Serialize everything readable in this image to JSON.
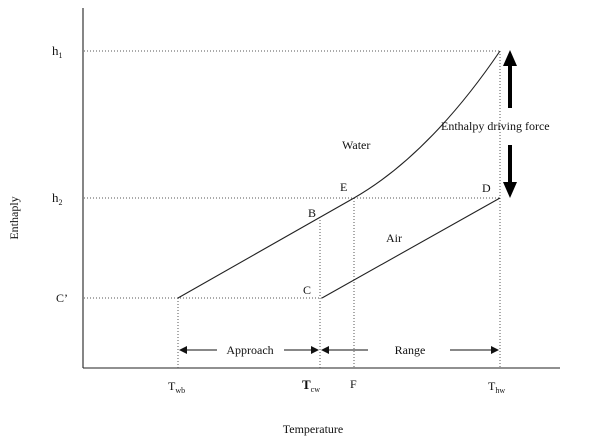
{
  "axes": {
    "xlabel": "Temperature",
    "ylabel": "Enthaply"
  },
  "y_labels": {
    "h1": {
      "main": "h",
      "sub": "1"
    },
    "h2": {
      "main": "h",
      "sub": "2"
    },
    "c_prime": "C’"
  },
  "x_labels": {
    "twb": {
      "main": "T",
      "sub": "wb"
    },
    "tcw": {
      "main": "T",
      "sub": "cw"
    },
    "f": "F",
    "thw": {
      "main": "T",
      "sub": "hw"
    }
  },
  "points": {
    "b": "B",
    "c": "C",
    "d": "D",
    "e": "E"
  },
  "curve_labels": {
    "water": "Water",
    "air": "Air"
  },
  "annotations": {
    "enthalpy_driving_force": "Enthalpy driving force",
    "approach": "Approach",
    "range": "Range"
  }
}
